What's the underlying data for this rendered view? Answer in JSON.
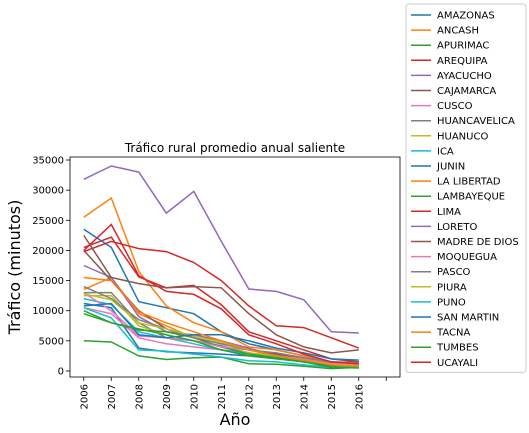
{
  "chart_data": {
    "type": "line",
    "title": "Tráfico rural promedio anual saliente",
    "xlabel": "Año",
    "ylabel": "Tráfico (minutos)",
    "x": [
      "2006",
      "2007",
      "2008",
      "2009",
      "2010",
      "2011",
      "2012",
      "2013",
      "2014",
      "2015",
      "2016"
    ],
    "ylim": [
      -1000,
      35500
    ],
    "yticks": [
      0,
      5000,
      10000,
      15000,
      20000,
      25000,
      30000,
      35000
    ],
    "ytick_labels": [
      "0",
      "5000",
      "10000",
      "15000",
      "20000",
      "25000",
      "30000",
      "35000"
    ],
    "legend_position": "outside-right",
    "series": [
      {
        "name": "AMAZONAS",
        "color": "#1f77b4",
        "values": [
          11200,
          10500,
          3800,
          3200,
          3000,
          2800,
          2500,
          2200,
          1500,
          1000,
          1200
        ]
      },
      {
        "name": "ANCASH",
        "color": "#ff7f0e",
        "values": [
          13500,
          15500,
          9500,
          7500,
          5500,
          4500,
          3500,
          2800,
          2200,
          1200,
          1300
        ]
      },
      {
        "name": "APURIMAC",
        "color": "#2ca02c",
        "values": [
          5000,
          4800,
          2500,
          1900,
          2200,
          2300,
          1200,
          1100,
          800,
          400,
          600
        ]
      },
      {
        "name": "AREQUIPA",
        "color": "#d62728",
        "values": [
          20500,
          22200,
          15600,
          13800,
          14200,
          11000,
          6500,
          5000,
          3500,
          2000,
          1500
        ]
      },
      {
        "name": "AYACUCHO",
        "color": "#9467bd",
        "values": [
          17500,
          15500,
          9000,
          6500,
          6000,
          5000,
          3800,
          2500,
          2000,
          1300,
          1000
        ]
      },
      {
        "name": "CAJAMARCA",
        "color": "#8c564b",
        "values": [
          20000,
          15000,
          10000,
          7000,
          5500,
          4500,
          3500,
          2800,
          2000,
          1200,
          1100
        ]
      },
      {
        "name": "CUSCO",
        "color": "#e377c2",
        "values": [
          10500,
          9500,
          5500,
          4500,
          4000,
          3500,
          3000,
          2500,
          1800,
          1200,
          1000
        ]
      },
      {
        "name": "HUANCAVELICA",
        "color": "#7f7f7f",
        "values": [
          13000,
          13000,
          8000,
          5500,
          5000,
          4200,
          3000,
          2200,
          1500,
          900,
          800
        ]
      },
      {
        "name": "HUANUCO",
        "color": "#bcbd22",
        "values": [
          12500,
          12500,
          7500,
          6000,
          5000,
          4000,
          3000,
          2500,
          1500,
          1000,
          800
        ]
      },
      {
        "name": "ICA",
        "color": "#17becf",
        "values": [
          12000,
          11000,
          6500,
          5500,
          4500,
          3500,
          2800,
          2200,
          1500,
          1000,
          900
        ]
      },
      {
        "name": "JUNIN",
        "color": "#1f77b4",
        "values": [
          23500,
          20500,
          11500,
          10500,
          9500,
          6500,
          4500,
          3500,
          2500,
          1500,
          1400
        ]
      },
      {
        "name": "LA LIBERTAD",
        "color": "#ff7f0e",
        "values": [
          25500,
          28700,
          16500,
          10800,
          8000,
          6500,
          4000,
          3500,
          2500,
          1500,
          1300
        ]
      },
      {
        "name": "LAMBAYEQUE",
        "color": "#2ca02c",
        "values": [
          10000,
          8000,
          6800,
          6500,
          5500,
          4000,
          2800,
          2200,
          1500,
          800,
          1100
        ]
      },
      {
        "name": "LIMA",
        "color": "#d62728",
        "values": [
          19800,
          21500,
          20300,
          19800,
          18000,
          15000,
          10800,
          7500,
          7200,
          5500,
          3800
        ]
      },
      {
        "name": "LORETO",
        "color": "#9467bd",
        "values": [
          31800,
          34000,
          33000,
          26200,
          29800,
          21500,
          13600,
          13200,
          11800,
          6500,
          6300
        ]
      },
      {
        "name": "MADRE DE DIOS",
        "color": "#8c564b",
        "values": [
          22500,
          15500,
          14500,
          13800,
          14000,
          13800,
          9500,
          6000,
          4000,
          3000,
          3500
        ]
      },
      {
        "name": "MOQUEGUA",
        "color": "#e377c2",
        "values": [
          13000,
          10000,
          5800,
          5500,
          5000,
          4000,
          3500,
          2500,
          2000,
          1200,
          1000
        ]
      },
      {
        "name": "PASCO",
        "color": "#7f7f7f",
        "values": [
          14000,
          12000,
          8500,
          7000,
          5500,
          4500,
          3500,
          3000,
          2200,
          1500,
          1200
        ]
      },
      {
        "name": "PIURA",
        "color": "#bcbd22",
        "values": [
          12800,
          11800,
          8000,
          7000,
          5800,
          4800,
          3500,
          2500,
          1800,
          1100,
          900
        ]
      },
      {
        "name": "PUNO",
        "color": "#17becf",
        "values": [
          10500,
          8800,
          3500,
          3300,
          2800,
          2300,
          1700,
          1500,
          1000,
          600,
          700
        ]
      },
      {
        "name": "SAN MARTIN",
        "color": "#1f77b4",
        "values": [
          10800,
          11200,
          6000,
          5500,
          6000,
          6000,
          5000,
          3800,
          3000,
          2000,
          1800
        ]
      },
      {
        "name": "TACNA",
        "color": "#ff7f0e",
        "values": [
          15500,
          15000,
          9800,
          8000,
          6500,
          5000,
          3500,
          2500,
          1800,
          1000,
          800
        ]
      },
      {
        "name": "TUMBES",
        "color": "#2ca02c",
        "values": [
          9500,
          8000,
          7000,
          6000,
          5000,
          3500,
          2500,
          2000,
          1500,
          600,
          500
        ]
      },
      {
        "name": "UCAYALI",
        "color": "#d62728",
        "values": [
          20000,
          24300,
          15800,
          13200,
          12700,
          10300,
          6000,
          4500,
          2800,
          1500,
          1200
        ]
      }
    ]
  }
}
